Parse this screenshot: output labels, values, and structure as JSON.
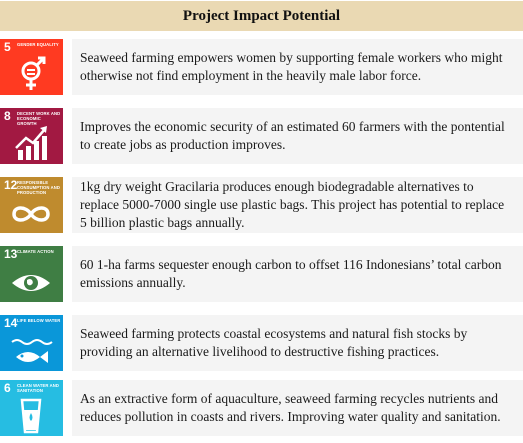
{
  "header": {
    "title": "Project Impact Potential"
  },
  "colors": {
    "header_bg": "#ead9b3",
    "row_bg": "#f4f4f4",
    "sdg5": "#ff3a21",
    "sdg8": "#a21942",
    "sdg12": "#bf8b2e",
    "sdg13": "#3f7e44",
    "sdg14": "#0a97d9",
    "sdg6": "#26bde2"
  },
  "rows": [
    {
      "goal_number": "5",
      "goal_title": "Gender Equality",
      "icon": "gender-equality-icon",
      "text": "Seaweed farming empowers women by supporting female workers who might otherwise not find employment in the heavily male labor force."
    },
    {
      "goal_number": "8",
      "goal_title": "Decent Work and Economic Growth",
      "icon": "economic-growth-icon",
      "text": "Improves the economic security of an estimated 60 farmers with the pontential to create jobs as production improves."
    },
    {
      "goal_number": "12",
      "goal_title": "Responsible Consumption and Production",
      "icon": "infinity-icon",
      "text": "1kg dry weight Gracilaria produces enough biodegradable alternatives to replace 5000-7000 single use plastic bags. This project has potential to replace 5 billion plastic bags annually."
    },
    {
      "goal_number": "13",
      "goal_title": "Climate Action",
      "icon": "eye-earth-icon",
      "text": "60 1-ha farms sequester enough carbon to offset 116 Indonesians’ total carbon emissions annually."
    },
    {
      "goal_number": "14",
      "goal_title": "Life Below Water",
      "icon": "fish-icon",
      "text": "Seaweed farming protects coastal ecosystems and natural fish stocks by providing an alternative livelihood to destructive fishing practices."
    },
    {
      "goal_number": "6",
      "goal_title": "Clean Water and Sanitation",
      "icon": "water-glass-icon",
      "text": "As an extractive form of aquaculture, seaweed farming recycles nutrients and reduces pollution in coasts and rivers. Improving water quality and sanitation."
    }
  ]
}
